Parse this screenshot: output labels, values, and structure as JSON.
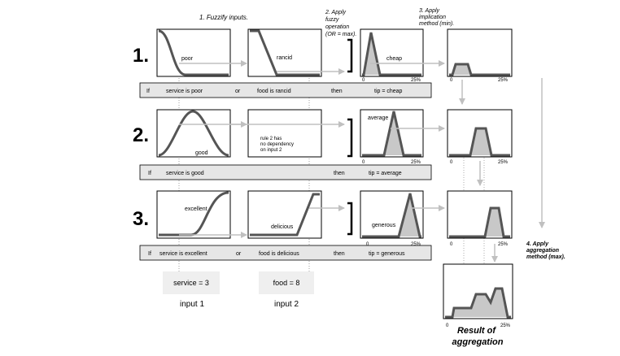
{
  "steps": {
    "fuzzify": "1. Fuzzify inputs.",
    "apply_op": [
      "2. Apply",
      "fuzzy",
      "operation",
      "(OR = max)."
    ],
    "implication": [
      "3. Apply",
      "implication",
      "method (min)."
    ],
    "aggregation": [
      "4. Apply",
      "aggregation",
      "method (max)."
    ]
  },
  "rules": [
    {
      "number": "1.",
      "input1_mf": "poor",
      "input2_mf": "rancid",
      "output_mf": "cheap",
      "text": {
        "if": "If",
        "service": "service is poor",
        "op": "or",
        "food": "food is rancid",
        "then": "then",
        "tip": "tip = cheap"
      }
    },
    {
      "number": "2.",
      "input1_mf": "good",
      "input2_note": [
        "rule 2 has",
        "no dependency",
        "on input 2"
      ],
      "output_mf": "average",
      "text": {
        "if": "If",
        "service": "service is good",
        "then": "then",
        "tip": "tip = average"
      }
    },
    {
      "number": "3.",
      "input1_mf": "excellent",
      "input2_mf": "delicious",
      "output_mf": "generous",
      "text": {
        "if": "If",
        "service": "service is excellent",
        "op": "or",
        "food": "food is delicious",
        "then": "then",
        "tip": "tip = generous"
      }
    }
  ],
  "axis": {
    "min": "0",
    "max": "25%"
  },
  "inputs": [
    {
      "value": "service = 3",
      "label": "input 1"
    },
    {
      "value": "food = 8",
      "label": "input 2"
    }
  ],
  "result": [
    "Result of",
    "aggregation"
  ],
  "colors": {
    "curve": "#555555",
    "fill": "#c8c8c8",
    "arrow": "#c0c0c0",
    "rule_bar": "#e6e6e6",
    "input_box": "#efefef"
  }
}
